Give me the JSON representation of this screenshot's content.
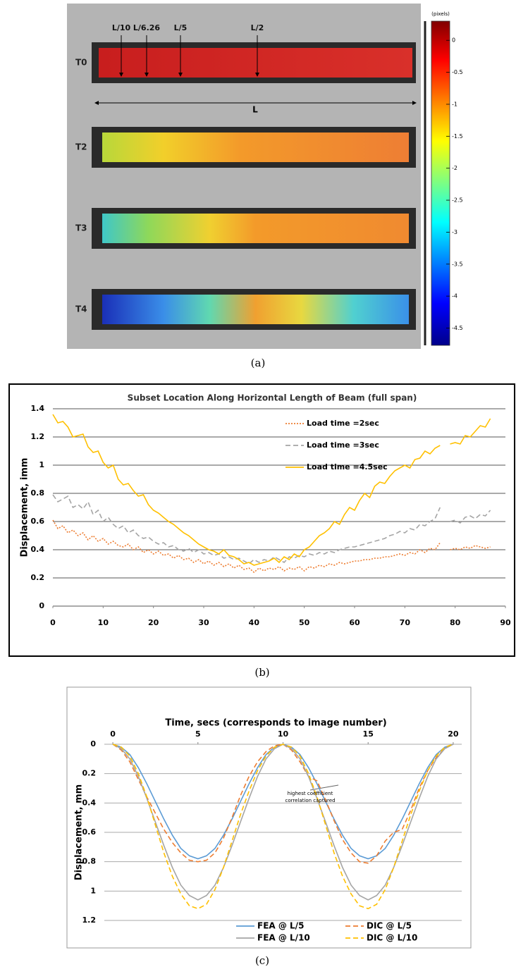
{
  "figure_a": {
    "markers": [
      "L/10",
      "L/6.26",
      "L/5",
      "L/2"
    ],
    "span_label": "L",
    "rows": [
      "T0",
      "T2",
      "T3",
      "T4"
    ],
    "colorbar": {
      "label": "(pixels)",
      "lim": [
        -4.77,
        0.3
      ],
      "ticks": [
        0,
        -0.5,
        -1,
        -1.5,
        -2,
        -2.5,
        -3,
        -3.5,
        -4,
        -4.5
      ]
    },
    "caption": "(a)"
  },
  "chart_data": [
    {
      "type": "line",
      "title": "Subset Location Along Horizontal Length of Beam (full span)",
      "y_label": "Displacement, imm",
      "caption": "(b)",
      "x": [
        0,
        1,
        2,
        3,
        4,
        5,
        6,
        7,
        8,
        9,
        10,
        11,
        12,
        13,
        14,
        15,
        16,
        17,
        18,
        19,
        20,
        21,
        22,
        23,
        24,
        25,
        26,
        27,
        28,
        29,
        30,
        31,
        32,
        33,
        34,
        35,
        36,
        37,
        38,
        39,
        40,
        41,
        42,
        43,
        44,
        45,
        46,
        47,
        48,
        49,
        50,
        51,
        52,
        53,
        54,
        55,
        56,
        57,
        58,
        59,
        60,
        61,
        62,
        63,
        64,
        65,
        66,
        67,
        68,
        69,
        70,
        71,
        72,
        73,
        74,
        75,
        76,
        77,
        78,
        79,
        80,
        81,
        82,
        83,
        84,
        85,
        86,
        87
      ],
      "xlim": [
        0,
        90
      ],
      "xticks": [
        0,
        10,
        20,
        30,
        40,
        50,
        60,
        70,
        80,
        90
      ],
      "ylim": [
        0,
        1.4
      ],
      "yticks": [
        0,
        0.2,
        0.4,
        0.6,
        0.8,
        1,
        1.2,
        1.4
      ],
      "grid": true,
      "legend": "top",
      "series": [
        {
          "name": "Load time =2sec",
          "color": "#ed7d31",
          "style": "dotted",
          "values": [
            0.61,
            0.55,
            0.57,
            0.52,
            0.54,
            0.5,
            0.52,
            0.47,
            0.5,
            0.46,
            0.48,
            0.44,
            0.46,
            0.43,
            0.42,
            0.44,
            0.4,
            0.42,
            0.38,
            0.4,
            0.37,
            0.39,
            0.36,
            0.37,
            0.34,
            0.36,
            0.33,
            0.34,
            0.31,
            0.33,
            0.3,
            0.32,
            0.29,
            0.31,
            0.28,
            0.3,
            0.27,
            0.29,
            0.26,
            0.27,
            0.24,
            0.27,
            0.25,
            0.27,
            0.26,
            0.28,
            0.25,
            0.27,
            0.26,
            0.28,
            0.25,
            0.28,
            0.27,
            0.29,
            0.28,
            0.3,
            0.29,
            0.31,
            0.3,
            0.31,
            0.32,
            0.32,
            0.33,
            0.33,
            0.34,
            0.34,
            0.35,
            0.35,
            0.36,
            0.37,
            0.36,
            0.38,
            0.37,
            0.4,
            0.38,
            0.41,
            0.4,
            0.45,
            null,
            0.4,
            0.41,
            0.4,
            0.42,
            0.41,
            0.43,
            0.42,
            0.41,
            0.42
          ]
        },
        {
          "name": "Load time =3sec",
          "color": "#a5a5a5",
          "style": "dashed",
          "values": [
            0.79,
            0.74,
            0.76,
            0.78,
            0.7,
            0.72,
            0.69,
            0.74,
            0.65,
            0.68,
            0.6,
            0.63,
            0.58,
            0.55,
            0.57,
            0.52,
            0.54,
            0.5,
            0.48,
            0.49,
            0.46,
            0.44,
            0.45,
            0.42,
            0.43,
            0.4,
            0.39,
            0.41,
            0.38,
            0.4,
            0.37,
            0.38,
            0.36,
            0.37,
            0.34,
            0.35,
            0.33,
            0.34,
            0.32,
            0.3,
            0.33,
            0.31,
            0.33,
            0.32,
            0.35,
            0.33,
            0.31,
            0.35,
            0.34,
            0.36,
            0.35,
            0.37,
            0.36,
            0.38,
            0.37,
            0.39,
            0.38,
            0.4,
            0.41,
            0.42,
            0.42,
            0.43,
            0.44,
            0.45,
            0.46,
            0.47,
            0.48,
            0.5,
            0.51,
            0.53,
            0.52,
            0.55,
            0.54,
            0.58,
            0.57,
            0.6,
            0.62,
            0.7,
            null,
            0.6,
            0.61,
            0.59,
            0.63,
            0.64,
            0.62,
            0.65,
            0.64,
            0.68
          ]
        },
        {
          "name": "Load time =4.5sec",
          "color": "#ffc000",
          "style": "solid",
          "values": [
            1.36,
            1.3,
            1.31,
            1.27,
            1.2,
            1.21,
            1.22,
            1.13,
            1.09,
            1.1,
            1.02,
            0.98,
            1,
            0.9,
            0.86,
            0.87,
            0.82,
            0.78,
            0.79,
            0.72,
            0.68,
            0.66,
            0.63,
            0.6,
            0.58,
            0.55,
            0.52,
            0.5,
            0.47,
            0.44,
            0.42,
            0.4,
            0.39,
            0.37,
            0.4,
            0.36,
            0.35,
            0.33,
            0.3,
            0.31,
            0.29,
            0.3,
            0.31,
            0.32,
            0.34,
            0.31,
            0.35,
            0.33,
            0.37,
            0.35,
            0.4,
            0.42,
            0.46,
            0.5,
            0.52,
            0.55,
            0.6,
            0.58,
            0.65,
            0.7,
            0.68,
            0.75,
            0.8,
            0.77,
            0.85,
            0.88,
            0.87,
            0.92,
            0.96,
            0.98,
            1,
            0.98,
            1.04,
            1.05,
            1.1,
            1.08,
            1.12,
            1.14,
            null,
            1.15,
            1.16,
            1.15,
            1.21,
            1.2,
            1.24,
            1.28,
            1.27,
            1.33
          ]
        }
      ]
    },
    {
      "type": "line",
      "x_label": "Time, secs (corresponds to image number)",
      "y_label": "Displacement, mm",
      "caption": "(c)",
      "annotation": [
        "highest coefficient",
        "correlation captured"
      ],
      "x": [
        0,
        0.5,
        1,
        1.5,
        2,
        2.5,
        3,
        3.5,
        4,
        4.5,
        5,
        5.5,
        6,
        6.5,
        7,
        7.5,
        8,
        8.5,
        9,
        9.5,
        10,
        10.5,
        11,
        11.5,
        12,
        12.5,
        13,
        13.5,
        14,
        14.5,
        15,
        15.5,
        16,
        16.5,
        17,
        17.5,
        18,
        18.5,
        19,
        19.5,
        20
      ],
      "xlim": [
        -0.5,
        20.5
      ],
      "xticks": [
        0,
        5,
        10,
        15,
        20
      ],
      "x_axis_top": true,
      "ylim": [
        0,
        1.2
      ],
      "yticks": [
        0,
        0.2,
        0.4,
        0.6,
        0.8,
        1,
        1.2
      ],
      "y_inverted": true,
      "grid": true,
      "legend": "bottom",
      "series": [
        {
          "name": "FEA @ L/5",
          "color": "#5b9bd5",
          "style": "solid",
          "values": [
            0,
            0.02,
            0.07,
            0.16,
            0.27,
            0.39,
            0.51,
            0.62,
            0.71,
            0.76,
            0.78,
            0.76,
            0.71,
            0.62,
            0.51,
            0.39,
            0.27,
            0.16,
            0.07,
            0.02,
            0,
            0.02,
            0.07,
            0.16,
            0.27,
            0.39,
            0.51,
            0.62,
            0.71,
            0.76,
            0.78,
            0.76,
            0.71,
            0.62,
            0.51,
            0.39,
            0.27,
            0.16,
            0.07,
            0.02,
            0
          ]
        },
        {
          "name": "DIC @ L/5",
          "color": "#ed7d31",
          "style": "dashed",
          "values": [
            0,
            0.04,
            0.12,
            0.24,
            0.36,
            0.47,
            0.58,
            0.67,
            0.74,
            0.79,
            0.8,
            0.79,
            0.74,
            0.64,
            0.5,
            0.35,
            0.22,
            0.12,
            0.05,
            0.01,
            0,
            0.04,
            0.12,
            0.22,
            0.25,
            0.38,
            0.52,
            0.65,
            0.74,
            0.8,
            0.81,
            0.76,
            0.66,
            0.6,
            0.58,
            0.45,
            0.3,
            0.18,
            0.09,
            0.03,
            0
          ]
        },
        {
          "name": "FEA @ L/10",
          "color": "#a5a5a5",
          "style": "solid",
          "values": [
            0,
            0.03,
            0.1,
            0.22,
            0.37,
            0.53,
            0.69,
            0.84,
            0.96,
            1.03,
            1.06,
            1.03,
            0.96,
            0.84,
            0.69,
            0.53,
            0.37,
            0.22,
            0.1,
            0.03,
            0,
            0.03,
            0.1,
            0.22,
            0.37,
            0.53,
            0.69,
            0.84,
            0.96,
            1.03,
            1.06,
            1.03,
            0.96,
            0.84,
            0.69,
            0.53,
            0.37,
            0.22,
            0.1,
            0.03,
            0
          ]
        },
        {
          "name": "DIC @ L/10",
          "color": "#ffc000",
          "style": "dashed",
          "values": [
            0,
            0.02,
            0.08,
            0.2,
            0.36,
            0.55,
            0.74,
            0.9,
            1.02,
            1.1,
            1.12,
            1.09,
            0.99,
            0.84,
            0.66,
            0.48,
            0.32,
            0.18,
            0.08,
            0.02,
            0,
            0.02,
            0.08,
            0.2,
            0.36,
            0.55,
            0.74,
            0.9,
            1.02,
            1.1,
            1.12,
            1.09,
            0.99,
            0.84,
            0.66,
            0.48,
            0.32,
            0.18,
            0.08,
            0.02,
            0
          ]
        }
      ]
    }
  ]
}
